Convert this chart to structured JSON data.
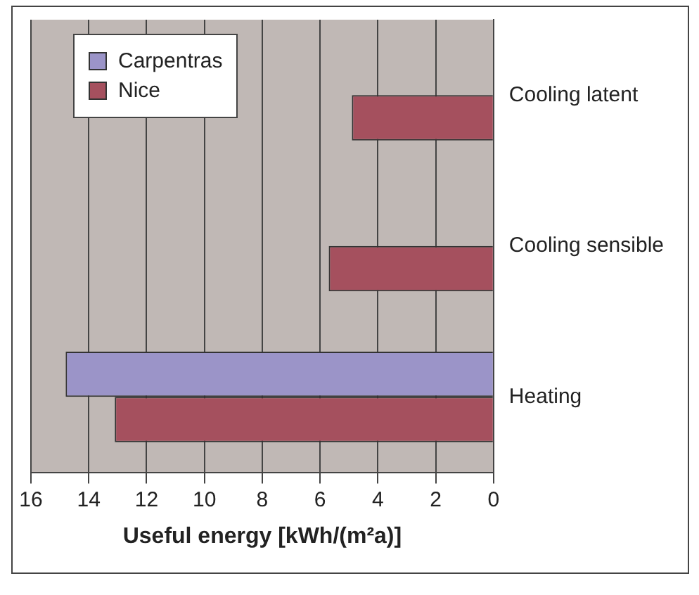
{
  "chart_data": {
    "type": "bar",
    "orientation": "horizontal",
    "xlabel": "Useful energy [kWh/(m²a)]",
    "categories": [
      "Cooling latent",
      "Cooling sensible",
      "Heating"
    ],
    "series": [
      {
        "name": "Carpentras",
        "color": "#9b94c8",
        "values": [
          0,
          0,
          14.8
        ]
      },
      {
        "name": "Nice",
        "color": "#a5505e",
        "values": [
          4.9,
          5.7,
          13.1
        ]
      }
    ],
    "xlim": [
      16,
      0
    ],
    "xticks": [
      16,
      14,
      12,
      10,
      8,
      6,
      4,
      2,
      0
    ],
    "grid": "x",
    "legend": "top left"
  }
}
